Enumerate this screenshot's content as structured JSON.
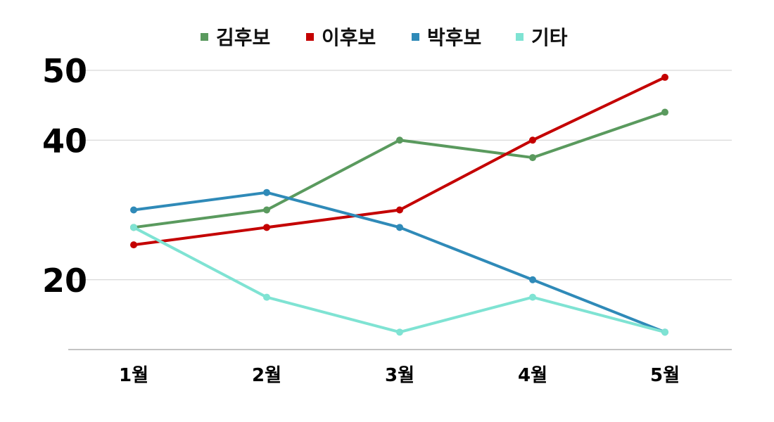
{
  "chart_data": {
    "type": "line",
    "categories": [
      "1월",
      "2월",
      "3월",
      "4월",
      "5월"
    ],
    "series": [
      {
        "name": "김후보",
        "color": "#5a9a5e",
        "values": [
          27.5,
          30,
          40,
          37.5,
          44
        ]
      },
      {
        "name": "이후보",
        "color": "#c40000",
        "values": [
          25,
          27.5,
          30,
          40,
          49
        ]
      },
      {
        "name": "박후보",
        "color": "#2f8ab8",
        "values": [
          30,
          32.5,
          27.5,
          20,
          12.5
        ]
      },
      {
        "name": "기타",
        "color": "#7fe3d3",
        "values": [
          27.5,
          17.5,
          12.5,
          17.5,
          12.5
        ]
      }
    ],
    "yticks": [
      {
        "label": "20",
        "value": 20
      },
      {
        "label": "40",
        "value": 40
      },
      {
        "label": "50",
        "value": 50
      }
    ],
    "ylim": [
      10,
      50
    ],
    "grid": true,
    "legend_position": "top-center"
  }
}
